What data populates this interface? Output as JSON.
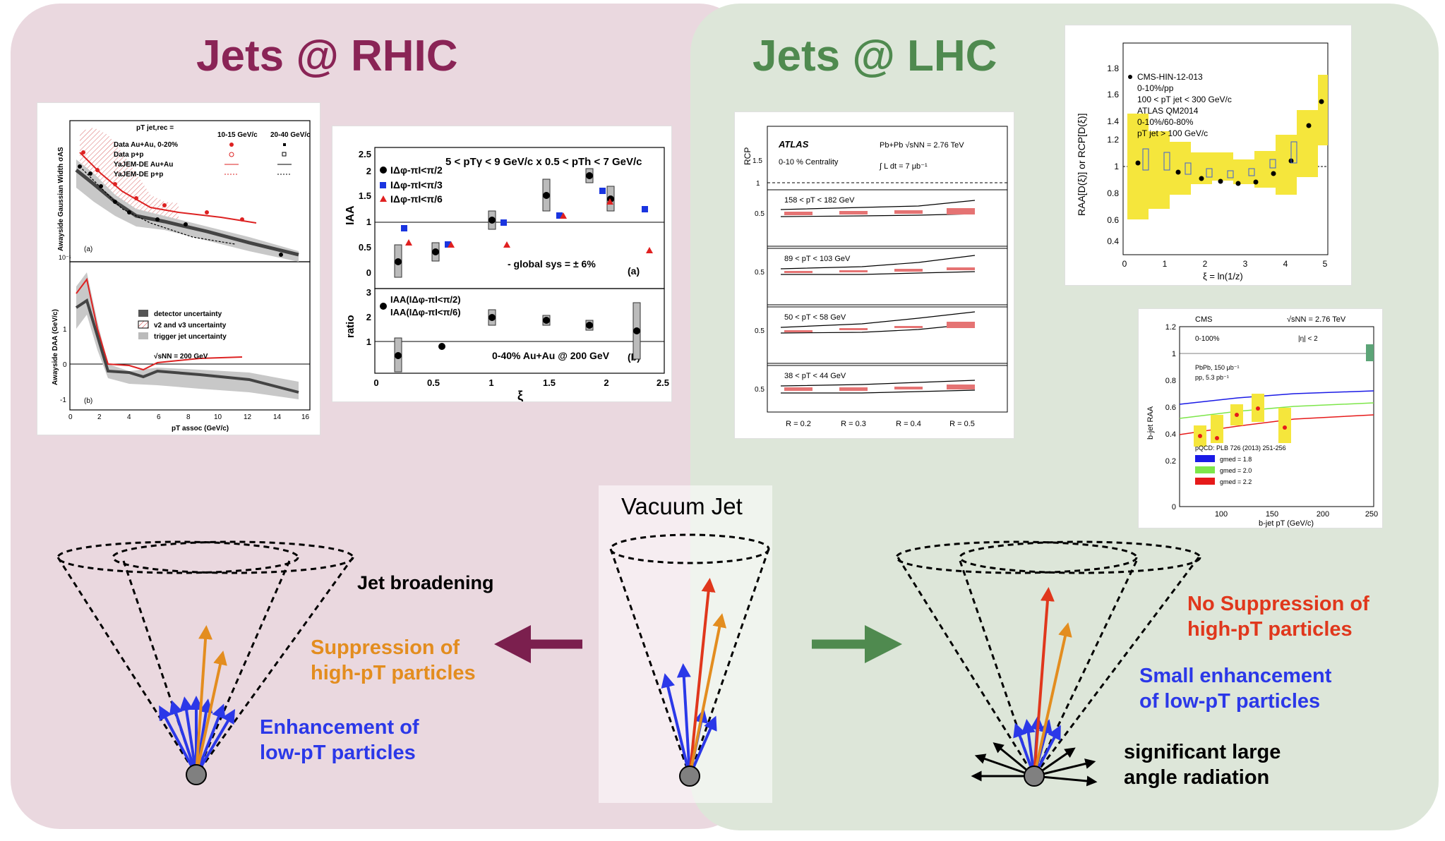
{
  "titles": {
    "rhic": "Jets @ RHIC",
    "lhc": "Jets @ LHC"
  },
  "colors": {
    "rhic": "#8a2456",
    "lhc": "#4f8a4f",
    "suppression": "#e38d1f",
    "enhancement": "#2b38e8",
    "no_suppression": "#e0371c"
  },
  "vacuum_jet": {
    "label": "Vacuum Jet"
  },
  "rhic_labels": {
    "broadening": "Jet broadening",
    "suppression_1": "Suppression of",
    "suppression_2": "high-pT particles",
    "enhancement_1": "Enhancement of",
    "enhancement_2": "low-pT particles"
  },
  "lhc_labels": {
    "no_suppression_1": "No Suppression of",
    "no_suppression_2": "high-pT particles",
    "small_enh_1": "Small enhancement",
    "small_enh_2": "of low-pT particles",
    "large_angle_1": "significant large",
    "large_angle_2": "angle radiation"
  },
  "fig_rhic_left": {
    "top_ylabel": "Awayside Gaussian Width σAS",
    "bottom_ylabel": "Awayside DAA (GeV/c)",
    "xlabel": "pT assoc (GeV/c)",
    "legend_header": "pT jet,rec =",
    "legend_cols": [
      "10-15 GeV/c",
      "20-40 GeV/c"
    ],
    "legend_rows": [
      "Data Au+Au, 0-20%",
      "Data p+p",
      "YaJEM-DE Au+Au",
      "YaJEM-DE p+p"
    ],
    "uncertainties": [
      "detector uncertainty",
      "v2 and v3 uncertainty",
      "trigger jet uncertainty"
    ],
    "energy": "√sNN = 200 GeV",
    "panel_a": "(a)",
    "panel_b": "(b)",
    "x_ticks": [
      "0",
      "2",
      "4",
      "6",
      "8",
      "10",
      "12",
      "14",
      "16"
    ],
    "bottom_y_ticks": [
      "1",
      "0",
      "-1"
    ],
    "top_y_tick": "10⁻¹"
  },
  "fig_rhic_right": {
    "header": "5 < pTγ < 9 GeV/c x 0.5 < pTh < 7 GeV/c",
    "legend": [
      "IΔφ-πI<π/2",
      "IΔφ-πI<π/3",
      "IΔφ-πI<π/6"
    ],
    "sys": "- global sys = ± 6%",
    "ratio_legend_1": "IAA(IΔφ-πI<π/2)",
    "ratio_legend_2": "IAA(IΔφ-πI<π/6)",
    "collision": "0-40% Au+Au @ 200 GeV",
    "ylabel_top": "IAA",
    "ylabel_bottom": "ratio",
    "xlabel": "ξ",
    "panel_a": "(a)",
    "panel_b": "(b)",
    "x_ticks": [
      "0",
      "0.5",
      "1",
      "1.5",
      "2",
      "2.5"
    ],
    "top_y_ticks": [
      "2.5",
      "2",
      "1.5",
      "1",
      "0.5",
      "0"
    ],
    "bottom_y_ticks": [
      "3",
      "2",
      "1"
    ]
  },
  "fig_atlas": {
    "logo": "ATLAS",
    "system": "Pb+Pb √sNN = 2.76 TeV",
    "centrality": "0-10 % Centrality",
    "lumi": "∫ L dt = 7 μb⁻¹",
    "ylabel": "RCP",
    "y_ticks": [
      "1.5",
      "1",
      "0.5"
    ],
    "panels": [
      "158 < pT < 182 GeV",
      "89 < pT < 103 GeV",
      "50 < pT < 58 GeV",
      "38 < pT < 44 GeV"
    ],
    "x_labels": [
      "R = 0.2",
      "R = 0.3",
      "R = 0.4",
      "R = 0.5"
    ]
  },
  "fig_cms_frag": {
    "legend": [
      "CMS-HIN-12-013",
      "0-10%/pp",
      "100 < pT jet < 300 GeV/c",
      "ATLAS QM2014",
      "0-10%/60-80%",
      "pT jet > 100 GeV/c"
    ],
    "ylabel": "RAA[D(ξ)] or RCP[D(ξ)]",
    "xlabel": "ξ = ln(1/z)",
    "y_ticks": [
      "1.8",
      "1.6",
      "1.4",
      "1.2",
      "1",
      "0.8",
      "0.6",
      "0.4"
    ],
    "x_ticks": [
      "0",
      "1",
      "2",
      "3",
      "4",
      "5"
    ]
  },
  "fig_cms_bjet": {
    "label": "CMS",
    "energy": "√sNN = 2.76 TeV",
    "centrality": "0-100%",
    "eta": "|η| < 2",
    "lumi_1": "PbPb, 150 μb⁻¹",
    "lumi_2": "pp, 5.3 pb⁻¹",
    "pqcd": "pQCD: PLB 726 (2013) 251-256",
    "gmed": [
      "gmed = 1.8",
      "gmed = 2.0",
      "gmed = 2.2"
    ],
    "gmed_colors": [
      "#1a1ae6",
      "#7de64a",
      "#e61a1a"
    ],
    "ylabel": "b-jet RAA",
    "xlabel": "b-jet pT (GeV/c)",
    "y_ticks": [
      "1.2",
      "1",
      "0.8",
      "0.6",
      "0.4",
      "0.2",
      "0"
    ],
    "x_ticks": [
      "100",
      "150",
      "200",
      "250"
    ]
  }
}
